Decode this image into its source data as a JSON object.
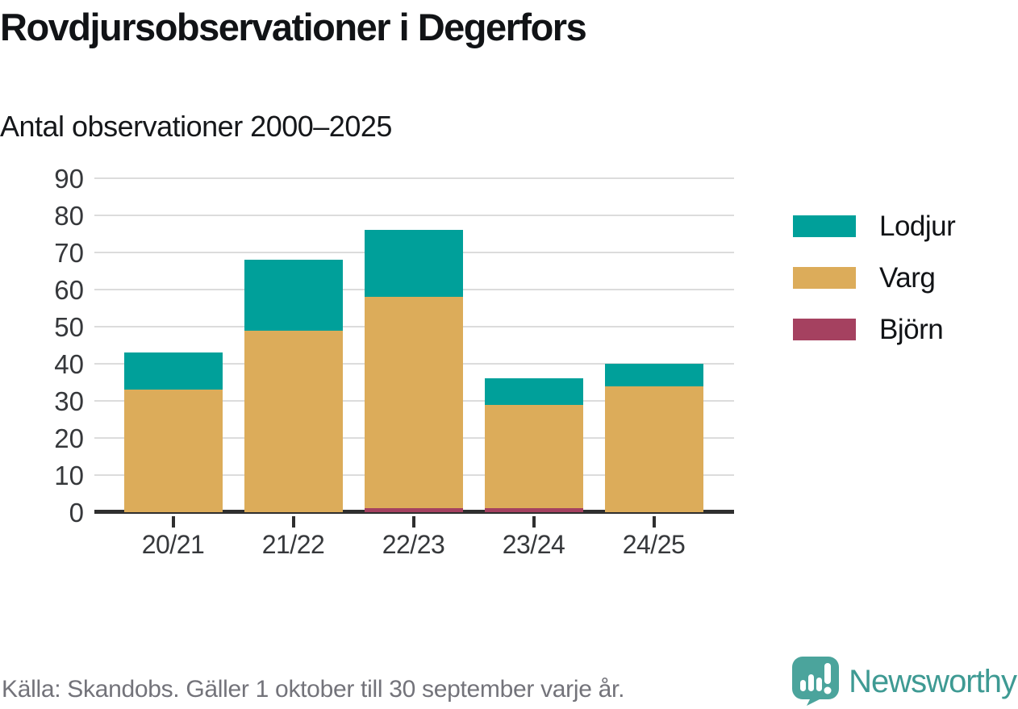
{
  "header": {
    "title": "Rovdjursobservationer i Degerfors",
    "subtitle": "Antal observationer 2000–2025"
  },
  "chart_data": {
    "type": "bar",
    "stacked": true,
    "title": "Rovdjursobservationer i Degerfors",
    "subtitle": "Antal observationer 2000–2025",
    "categories": [
      "20/21",
      "21/22",
      "22/23",
      "23/24",
      "24/25"
    ],
    "series": [
      {
        "name": "Björn",
        "color": "#a54160",
        "values": [
          0,
          0,
          1,
          1,
          0
        ]
      },
      {
        "name": "Varg",
        "color": "#dcac5a",
        "values": [
          33,
          49,
          57,
          28,
          34
        ]
      },
      {
        "name": "Lodjur",
        "color": "#00a09a",
        "values": [
          10,
          19,
          18,
          7,
          6
        ]
      }
    ],
    "ylim": [
      0,
      90
    ],
    "yticks": [
      0,
      10,
      20,
      30,
      40,
      50,
      60,
      70,
      80,
      90
    ],
    "grid": "horizontal",
    "legend_position": "right",
    "legend_order": [
      "Lodjur",
      "Varg",
      "Björn"
    ]
  },
  "legend": {
    "items": [
      {
        "label": "Lodjur",
        "color": "#00a09a"
      },
      {
        "label": "Varg",
        "color": "#dcac5a"
      },
      {
        "label": "Björn",
        "color": "#a54160"
      }
    ]
  },
  "footer": {
    "source": "Källa: Skandobs. Gäller 1 oktober till 30 september varje år.",
    "brand": "Newsworthy"
  },
  "colors": {
    "teal": "#00a09a",
    "tan": "#dcac5a",
    "berry": "#a54160",
    "gridline": "#dcdcdc",
    "axis": "#2f2f2f",
    "text": "#111316",
    "tick_text": "#36383b",
    "source_text": "#73737a",
    "logo_teal": "#4ba49c",
    "wordmark_teal": "#3e9a93"
  }
}
